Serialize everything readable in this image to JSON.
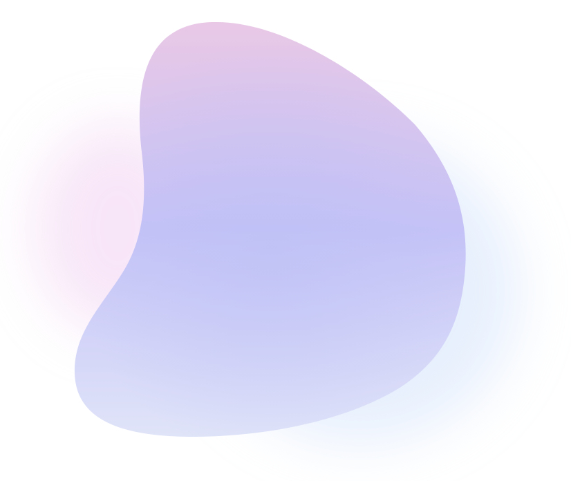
{
  "colors": {
    "top": "#e9c8e6",
    "middle": "#c4c2f7",
    "bottom": "#e0e4f8",
    "glow_pink": "#f3d6f3",
    "glow_blue": "#cfe0fb"
  }
}
